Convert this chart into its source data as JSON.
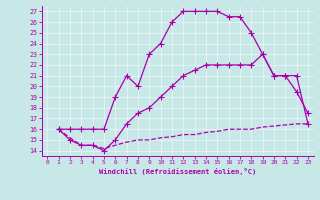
{
  "xlabel": "Windchill (Refroidissement éolien,°C)",
  "bg_color": "#c8e8e8",
  "line_color": "#aa00aa",
  "xlim": [
    -0.5,
    23.5
  ],
  "ylim": [
    13.5,
    27.5
  ],
  "xticks": [
    0,
    1,
    2,
    3,
    4,
    5,
    6,
    7,
    8,
    9,
    10,
    11,
    12,
    13,
    14,
    15,
    16,
    17,
    18,
    19,
    20,
    21,
    22,
    23
  ],
  "yticks": [
    14,
    15,
    16,
    17,
    18,
    19,
    20,
    21,
    22,
    23,
    24,
    25,
    26,
    27
  ],
  "line1_x": [
    1,
    2,
    3,
    4,
    5,
    6,
    7,
    8,
    9,
    10,
    11,
    12,
    13,
    14,
    15,
    16,
    17,
    18,
    19,
    20,
    21,
    22,
    23
  ],
  "line1_y": [
    16,
    16,
    16,
    16,
    16,
    19,
    21,
    20,
    23,
    24,
    26,
    27,
    27,
    27,
    27,
    26.5,
    26.5,
    25,
    23,
    21,
    21,
    21,
    16.5
  ],
  "line2_x": [
    1,
    2,
    3,
    4,
    5,
    6,
    7,
    8,
    9,
    10,
    11,
    12,
    13,
    14,
    15,
    16,
    17,
    18,
    19,
    20,
    21,
    22,
    23
  ],
  "line2_y": [
    16,
    15,
    14.5,
    14.5,
    14,
    15,
    16.5,
    17.5,
    18,
    19,
    20,
    21,
    21.5,
    22,
    22,
    22,
    22,
    22,
    23,
    21,
    21,
    19.5,
    17.5
  ],
  "line3_x": [
    1,
    2,
    3,
    4,
    5,
    6,
    7,
    8,
    9,
    10,
    11,
    12,
    13,
    14,
    15,
    16,
    17,
    18,
    19,
    20,
    21,
    22,
    23
  ],
  "line3_y": [
    16,
    15.2,
    14.5,
    14.5,
    14.2,
    14.5,
    14.8,
    15,
    15,
    15.2,
    15.3,
    15.5,
    15.5,
    15.7,
    15.8,
    16,
    16,
    16,
    16.2,
    16.3,
    16.4,
    16.5,
    16.5
  ]
}
